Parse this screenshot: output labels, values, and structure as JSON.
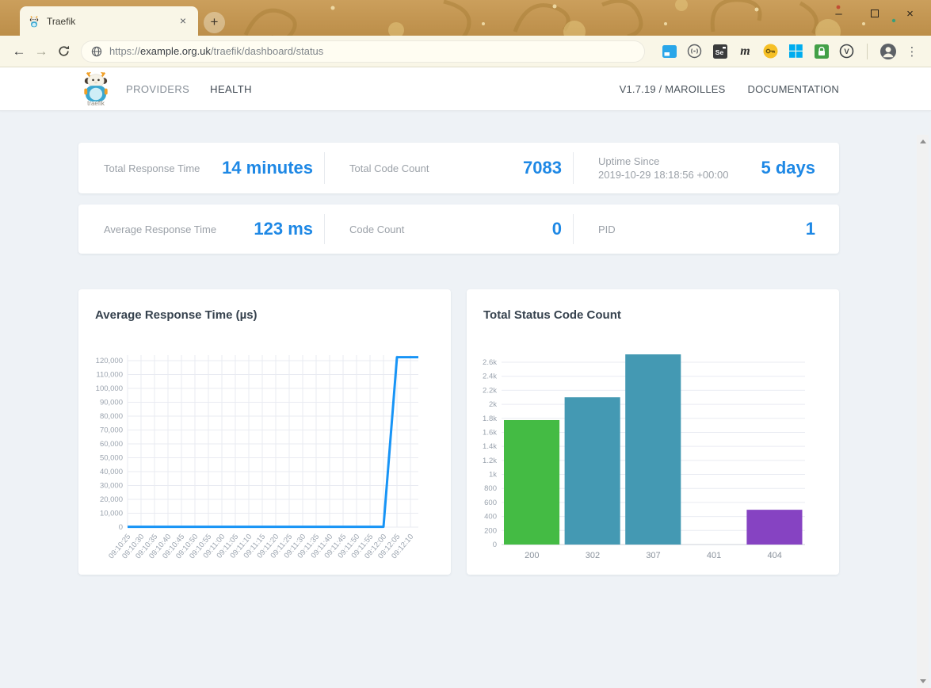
{
  "browser": {
    "tab": {
      "title": "Traefik",
      "close_icon": "×"
    },
    "icons": {
      "new_tab": "+",
      "minimize": "–",
      "close": "×",
      "back": "←",
      "forward": "→",
      "menu": "⋮"
    },
    "url": {
      "scheme": "https://",
      "domain": "example.org.uk",
      "path": "/traefik/dashboard/status"
    },
    "extensions": {
      "selenium_label": "Se",
      "m_label": "m",
      "v_label": "V"
    }
  },
  "app_header": {
    "logo_text": "traefik",
    "nav": [
      {
        "label": "PROVIDERS",
        "active": false
      },
      {
        "label": "HEALTH",
        "active": true
      }
    ],
    "version": "V1.7.19 / MAROILLES",
    "documentation": "DOCUMENTATION"
  },
  "stats": {
    "row1": [
      {
        "label": "Total Response Time",
        "value": "14 minutes"
      },
      {
        "label": "Total Code Count",
        "value": "7083"
      },
      {
        "label": "Uptime Since",
        "sublabel": "2019-10-29 18:18:56 +00:00",
        "value": "5 days"
      }
    ],
    "row2": [
      {
        "label": "Average Response Time",
        "value": "123 ms"
      },
      {
        "label": "Code Count",
        "value": "0"
      },
      {
        "label": "PID",
        "value": "1"
      }
    ]
  },
  "chart_data": [
    {
      "type": "line",
      "title": "Average Response Time (µs)",
      "x": [
        "09:10:25",
        "09:10:30",
        "09:10:35",
        "09:10:40",
        "09:10:45",
        "09:10:50",
        "09:10:55",
        "09:11:00",
        "09:11:05",
        "09:11:10",
        "09:11:15",
        "09:11:20",
        "09:11:25",
        "09:11:30",
        "09:11:35",
        "09:11:40",
        "09:11:45",
        "09:11:50",
        "09:11:55",
        "09:12:00",
        "09:12:05",
        "09:12:10"
      ],
      "values": [
        250,
        250,
        250,
        250,
        250,
        250,
        250,
        250,
        250,
        250,
        250,
        250,
        250,
        250,
        250,
        250,
        250,
        250,
        250,
        250,
        122500,
        122500
      ],
      "ylim": [
        0,
        124000
      ],
      "ytick_max": 120000,
      "ytick_step": 10000,
      "xlabel": "",
      "ylabel": "",
      "grid": true,
      "legend": "none",
      "line_color": "#1794f6"
    },
    {
      "type": "bar",
      "title": "Total Status Code Count",
      "categories": [
        "200",
        "302",
        "307",
        "401",
        "404"
      ],
      "values": [
        1775,
        2100,
        2712,
        0,
        496
      ],
      "bar_colors": [
        "#44bb44",
        "#4499b3",
        "#4499b3",
        "#4499b3",
        "#8643c2"
      ],
      "ylim": [
        0,
        2720
      ],
      "ytick_max": 2600,
      "ytick_step": 200,
      "xlabel": "",
      "ylabel": "",
      "grid": true,
      "legend": "none"
    }
  ],
  "colors": {
    "accent_blue": "#1e88e5",
    "page_bg": "#eef2f6",
    "theme_gold": "#c2914c",
    "bar_green": "#44bb44",
    "bar_blue": "#4499b3",
    "bar_purple": "#8643c2"
  }
}
